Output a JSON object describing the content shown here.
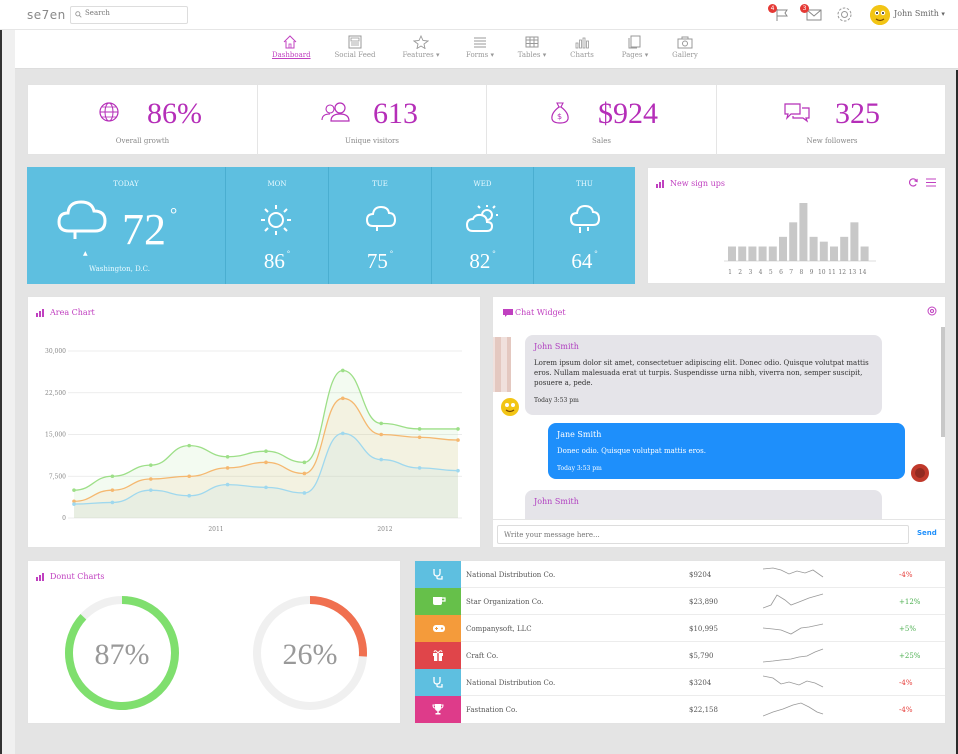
{
  "brand": {
    "logo": "se7en"
  },
  "search": {
    "placeholder": "Search"
  },
  "topbar": {
    "flag_badge": "4",
    "mail_badge": "3",
    "username": "John Smith"
  },
  "nav": [
    {
      "label": "Dashboard",
      "icon": "home-icon",
      "active": true
    },
    {
      "label": "Social Feed",
      "icon": "newspaper-icon"
    },
    {
      "label": "Features",
      "icon": "star-icon",
      "dropdown": true
    },
    {
      "label": "Forms",
      "icon": "list-icon",
      "dropdown": true
    },
    {
      "label": "Tables",
      "icon": "table-icon",
      "dropdown": true
    },
    {
      "label": "Charts",
      "icon": "bar-chart-icon"
    },
    {
      "label": "Pages",
      "icon": "pages-icon",
      "dropdown": true
    },
    {
      "label": "Gallery",
      "icon": "camera-icon"
    }
  ],
  "stats": [
    {
      "value": "86%",
      "label": "Overall growth",
      "icon": "globe-icon"
    },
    {
      "value": "613",
      "label": "Unique visitors",
      "icon": "users-icon"
    },
    {
      "value": "$924",
      "label": "Sales",
      "icon": "money-bag-icon"
    },
    {
      "value": "325",
      "label": "New followers",
      "icon": "chat-bubbles-icon"
    }
  ],
  "weather": {
    "today": {
      "label": "TODAY",
      "temp": "72",
      "location": "Washington, D.C."
    },
    "days": [
      {
        "label": "MON",
        "temp": "86",
        "icon": "sun-icon"
      },
      {
        "label": "TUE",
        "temp": "75",
        "icon": "cloud-icon"
      },
      {
        "label": "WED",
        "temp": "82",
        "icon": "partly-cloudy-icon"
      },
      {
        "label": "THU",
        "temp": "64",
        "icon": "rain-cloud-icon"
      }
    ]
  },
  "signups": {
    "title": "New sign ups",
    "days": [
      "1",
      "2",
      "3",
      "4",
      "5",
      "6",
      "7",
      "8",
      "9",
      "10",
      "11",
      "12",
      "13",
      "14"
    ],
    "values": [
      3,
      3,
      3,
      3,
      3,
      5,
      8,
      12,
      5,
      4,
      3,
      5,
      8,
      3
    ]
  },
  "area_chart": {
    "title": "Area Chart",
    "chart_data": {
      "type": "area",
      "x_ticks": [
        "2011",
        "2012"
      ],
      "y_ticks": [
        "0",
        "7,500",
        "15,000",
        "22,500",
        "30,000"
      ],
      "ylim": [
        0,
        30000
      ],
      "x": [
        0,
        1,
        2,
        3,
        4,
        5,
        6,
        7,
        8,
        9,
        10
      ],
      "series": [
        {
          "values": [
            5000,
            7500,
            9500,
            13000,
            11000,
            12000,
            10000,
            26500,
            17000,
            16000,
            16000
          ],
          "color": "#9ddf88"
        },
        {
          "values": [
            3000,
            5000,
            7000,
            7500,
            9000,
            10000,
            8000,
            21500,
            15000,
            14500,
            14000
          ],
          "color": "#f5b870"
        },
        {
          "values": [
            2500,
            2800,
            5000,
            4000,
            6000,
            5500,
            4500,
            15200,
            10500,
            9000,
            8500
          ],
          "color": "#9fd8ee"
        }
      ]
    }
  },
  "chat": {
    "title": "Chat Widget",
    "messages": [
      {
        "name": "John Smith",
        "text": "Lorem ipsum dolor sit amet, consectetuer adipiscing elit. Donec odio. Quisque volutpat mattis eros. Nullam malesuada erat ut turpis. Suspendisse urna nibh, viverra non, semper suscipit, posuere a, pede.",
        "time": "Today 3:53 pm"
      },
      {
        "name": "Jane Smith",
        "text": "Donec odio. Quisque volutpat mattis eros.",
        "time": "Today 3:53 pm"
      },
      {
        "name": "John Smith"
      }
    ],
    "input_placeholder": "Write your message here...",
    "send_label": "Send"
  },
  "donut": {
    "title": "Donut Charts",
    "charts": [
      {
        "value": "87%",
        "fraction": 0.87,
        "color": "#7fdf6e"
      },
      {
        "value": "26%",
        "fraction": 0.26,
        "color": "#f07050"
      }
    ]
  },
  "list": [
    {
      "name": "National Distribution Co.",
      "amount": "$9204",
      "change": "-4%",
      "color": "#5ebfe0",
      "icon": "stethoscope-icon",
      "trend": "down"
    },
    {
      "name": "Star Organization Co.",
      "amount": "$23,890",
      "change": "+12%",
      "color": "#66c04a",
      "icon": "coffee-icon",
      "trend": "up"
    },
    {
      "name": "Companysoft, LLC",
      "amount": "$10,995",
      "change": "+5%",
      "color": "#f49b3b",
      "icon": "gamepad-icon",
      "trend": "flat"
    },
    {
      "name": "Craft Co.",
      "amount": "$5,790",
      "change": "+25%",
      "color": "#e0454a",
      "icon": "gift-icon",
      "trend": "up"
    },
    {
      "name": "National Distribution Co.",
      "amount": "$3204",
      "change": "-4%",
      "color": "#5ebfe0",
      "icon": "stethoscope-icon",
      "trend": "wave"
    },
    {
      "name": "Fastnation Co.",
      "amount": "$22,158",
      "change": "-4%",
      "color": "#de3b8a",
      "icon": "trophy-icon",
      "trend": "peak"
    }
  ]
}
